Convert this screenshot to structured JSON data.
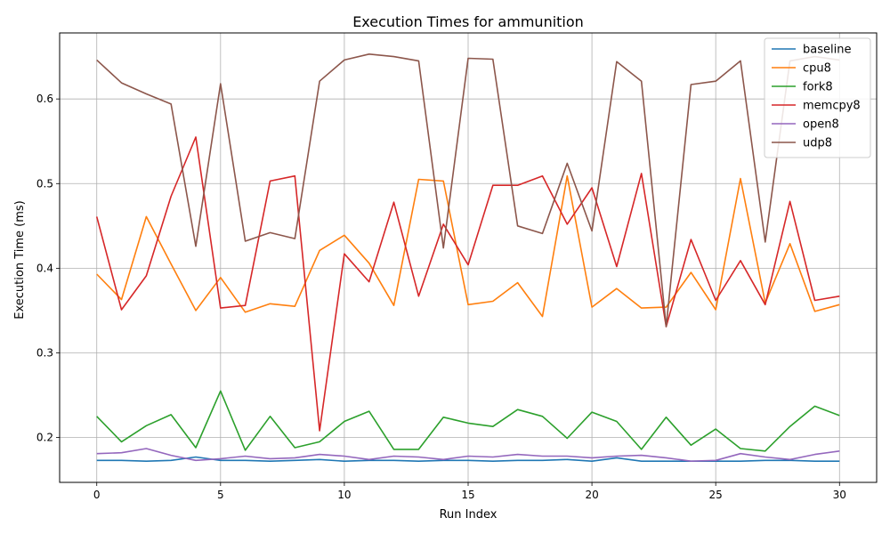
{
  "chart_data": {
    "type": "line",
    "title": "Execution Times for ammunition",
    "xlabel": "Run Index",
    "ylabel": "Execution Time (ms)",
    "xlim": [
      -1.5,
      31.5
    ],
    "ylim": [
      0.147,
      0.678
    ],
    "xticks": [
      0,
      5,
      10,
      15,
      20,
      25,
      30
    ],
    "yticks": [
      0.2,
      0.3,
      0.4,
      0.5,
      0.6
    ],
    "grid": true,
    "legend_position": "top-right",
    "x": [
      0,
      1,
      2,
      3,
      4,
      5,
      6,
      7,
      8,
      9,
      10,
      11,
      12,
      13,
      14,
      15,
      16,
      17,
      18,
      19,
      20,
      21,
      22,
      23,
      24,
      25,
      26,
      27,
      28,
      29,
      30
    ],
    "series": [
      {
        "name": "baseline",
        "color": "#1f77b4",
        "values": [
          0.173,
          0.173,
          0.172,
          0.173,
          0.177,
          0.173,
          0.173,
          0.172,
          0.173,
          0.174,
          0.172,
          0.173,
          0.173,
          0.172,
          0.173,
          0.173,
          0.172,
          0.173,
          0.173,
          0.174,
          0.172,
          0.176,
          0.172,
          0.172,
          0.172,
          0.172,
          0.172,
          0.173,
          0.173,
          0.172,
          0.172
        ]
      },
      {
        "name": "cpu8",
        "color": "#ff7f0e",
        "values": [
          0.393,
          0.363,
          0.461,
          0.405,
          0.35,
          0.389,
          0.348,
          0.358,
          0.355,
          0.421,
          0.439,
          0.406,
          0.356,
          0.505,
          0.503,
          0.357,
          0.361,
          0.383,
          0.343,
          0.509,
          0.354,
          0.376,
          0.353,
          0.354,
          0.395,
          0.351,
          0.506,
          0.359,
          0.429,
          0.349,
          0.357
        ]
      },
      {
        "name": "fork8",
        "color": "#2ca02c",
        "values": [
          0.225,
          0.195,
          0.214,
          0.227,
          0.188,
          0.255,
          0.185,
          0.225,
          0.188,
          0.195,
          0.219,
          0.231,
          0.186,
          0.186,
          0.224,
          0.217,
          0.213,
          0.233,
          0.225,
          0.199,
          0.23,
          0.219,
          0.186,
          0.224,
          0.191,
          0.21,
          0.187,
          0.184,
          0.213,
          0.237,
          0.226
        ]
      },
      {
        "name": "memcpy8",
        "color": "#d62728",
        "values": [
          0.461,
          0.351,
          0.391,
          0.485,
          0.555,
          0.353,
          0.356,
          0.503,
          0.509,
          0.208,
          0.417,
          0.384,
          0.478,
          0.367,
          0.452,
          0.404,
          0.498,
          0.498,
          0.509,
          0.452,
          0.495,
          0.402,
          0.512,
          0.331,
          0.434,
          0.362,
          0.409,
          0.357,
          0.479,
          0.362,
          0.367
        ]
      },
      {
        "name": "open8",
        "color": "#9467bd",
        "values": [
          0.181,
          0.182,
          0.187,
          0.179,
          0.173,
          0.175,
          0.178,
          0.175,
          0.176,
          0.18,
          0.178,
          0.174,
          0.178,
          0.177,
          0.174,
          0.178,
          0.177,
          0.18,
          0.178,
          0.178,
          0.176,
          0.178,
          0.179,
          0.176,
          0.172,
          0.173,
          0.181,
          0.177,
          0.174,
          0.18,
          0.184
        ]
      },
      {
        "name": "udp8",
        "color": "#8c564b",
        "values": [
          0.646,
          0.619,
          0.606,
          0.594,
          0.426,
          0.618,
          0.432,
          0.442,
          0.435,
          0.621,
          0.646,
          0.653,
          0.65,
          0.645,
          0.424,
          0.648,
          0.647,
          0.45,
          0.441,
          0.524,
          0.444,
          0.644,
          0.621,
          0.331,
          0.617,
          0.621,
          0.645,
          0.431,
          0.645,
          0.65,
          0.646
        ]
      }
    ]
  }
}
